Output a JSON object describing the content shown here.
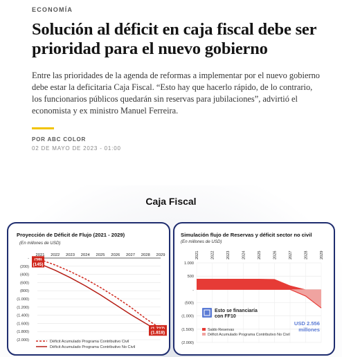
{
  "article": {
    "section": "ECONOMÍA",
    "headline": "Solución al déficit en caja fiscal debe ser prioridad para el nuevo gobierno",
    "lead": "Entre las prioridades de la agenda de reformas a implementar por el nuevo gobierno debe estar la deficitaria Caja Fiscal. “Esto hay que hacerlo rápido, de lo contrario, los funcionarios públicos quedarán sin reservas para jubilaciones”, advirtió el economista y ex ministro Manuel Ferreira.",
    "byline": "POR ABC COLOR",
    "date": "02 DE MAYO DE 2023 - 01:00",
    "accent_color": "#f2c300"
  },
  "infographic": {
    "title": "Caja Fiscal",
    "border_color": "#1e2c6e"
  },
  "chart_data": [
    {
      "type": "line",
      "title": "Proyección de Déficit de Flujo (2021 - 2029)",
      "unit_note": "(En millones de USD)",
      "x": [
        "2021",
        "2022",
        "2023",
        "2024",
        "2025",
        "2026",
        "2027",
        "2028",
        "2029"
      ],
      "y_ticks": [
        "-",
        "(200)",
        "(400)",
        "(600)",
        "(800)",
        "(1.000)",
        "(1.200)",
        "(1.400)",
        "(1.600)",
        "(1.800)",
        "(2.000)"
      ],
      "ylim": [
        -2000,
        0
      ],
      "series": [
        {
          "name": "Déficit Acumulado Programa Contributivo Civil",
          "style": "dashed",
          "color": "#d0281d",
          "values": [
            -39,
            -170,
            -330,
            -510,
            -720,
            -950,
            -1200,
            -1480,
            -1727
          ]
        },
        {
          "name": "Déficit Acumulado Programa Contributivo No Civil",
          "style": "solid",
          "color": "#b51d14",
          "values": [
            -145,
            -300,
            -480,
            -680,
            -900,
            -1140,
            -1380,
            -1600,
            -1818
          ]
        }
      ],
      "annotations": [
        {
          "text": "(39)",
          "x": "2021",
          "y": -39
        },
        {
          "text": "(145)",
          "x": "2021",
          "y": -145
        },
        {
          "text": "(1.727)",
          "x": "2029",
          "y": -1727
        },
        {
          "text": "(1.818)",
          "x": "2029",
          "y": -1818
        }
      ],
      "grid": true
    },
    {
      "type": "area",
      "title": "Simulación flujo de Reservas y déficit sector no civil",
      "unit_note": "(En millones de USD)",
      "x": [
        "2021",
        "2022",
        "2023",
        "2024",
        "2025",
        "2026",
        "2027",
        "2028",
        "2029"
      ],
      "y_ticks": [
        "1.000",
        "500",
        "-",
        "(500)",
        "(1.000)",
        "(1.500)",
        "(2.000)"
      ],
      "ylim": [
        -2000,
        1000
      ],
      "series": [
        {
          "name": "Saldo Reservas",
          "color": "#e63b36",
          "values": [
            400,
            400,
            400,
            400,
            400,
            390,
            150,
            0,
            0
          ]
        },
        {
          "name": "Déficit Acumulado Programa Contributivo No Civil",
          "color": "#f0a3a0",
          "values": [
            0,
            0,
            0,
            0,
            0,
            0,
            0,
            -250,
            -700
          ]
        }
      ],
      "callout": {
        "line1": "Esto se financiaría",
        "line2": "con FF10"
      },
      "highlight": {
        "line1": "USD 2.556",
        "line2": "millones"
      },
      "grid": true
    }
  ]
}
